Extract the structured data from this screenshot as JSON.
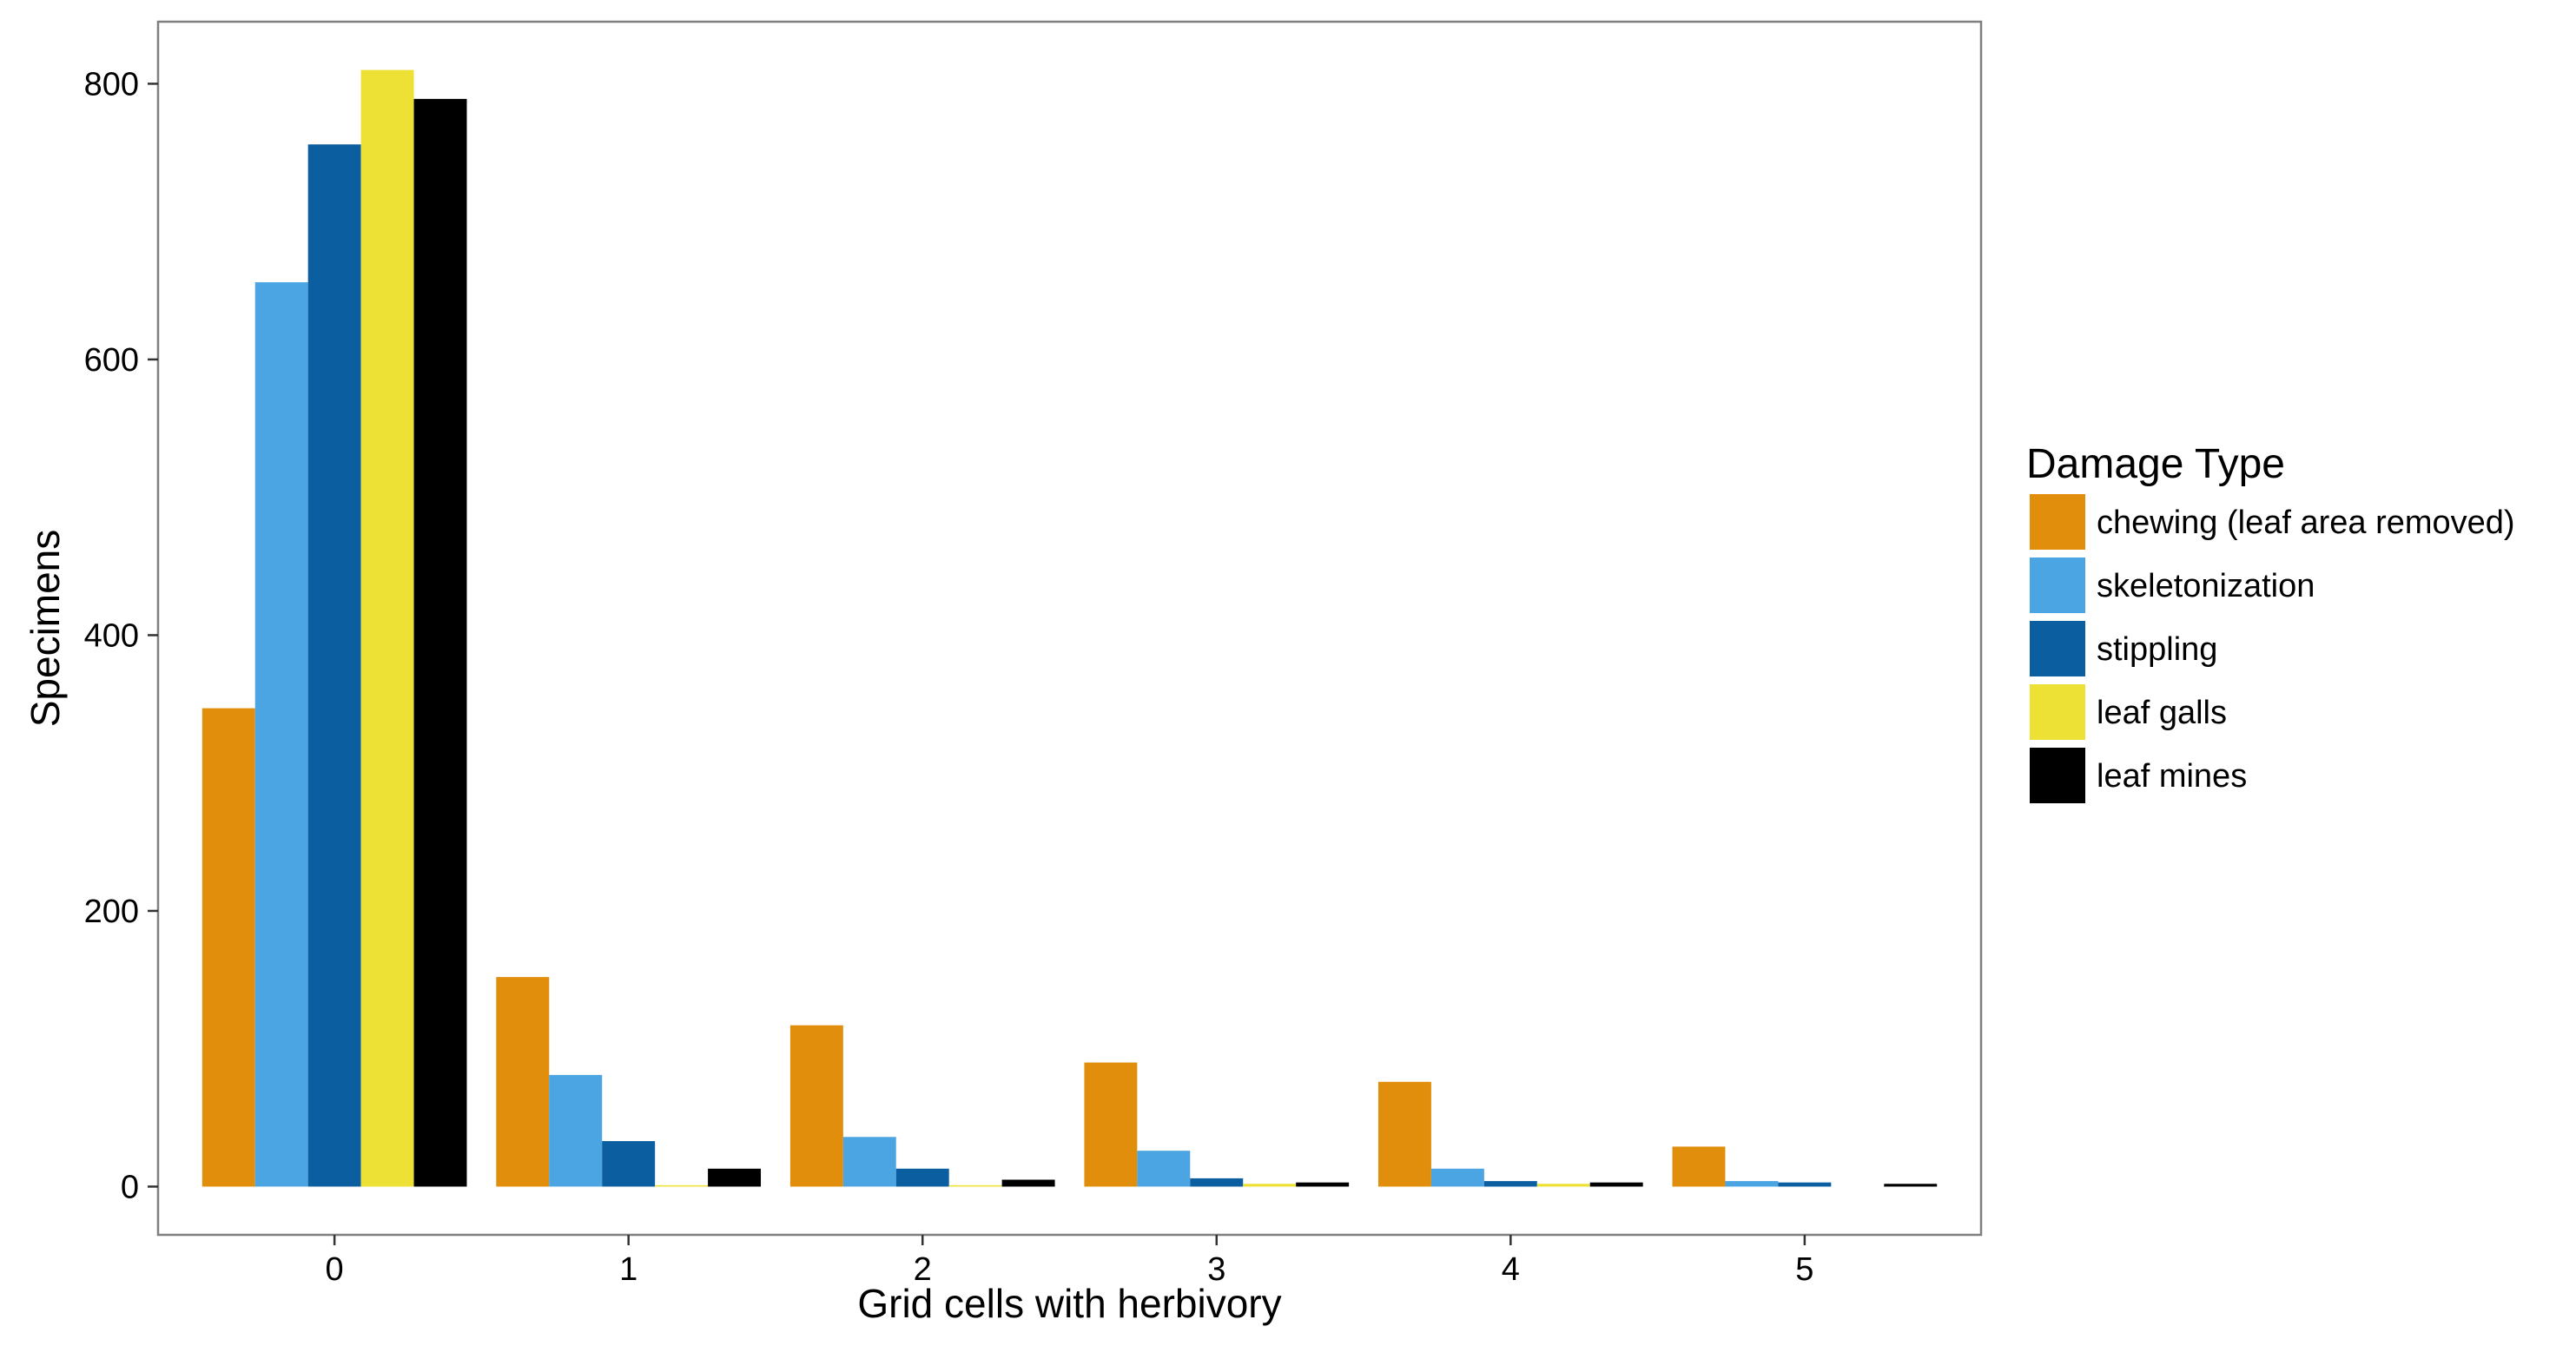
{
  "chart_data": {
    "type": "bar",
    "title": "",
    "xlabel": "Grid cells with herbivory",
    "ylabel": "Specimens",
    "categories": [
      "0",
      "1",
      "2",
      "3",
      "4",
      "5"
    ],
    "yticks": [
      0,
      200,
      400,
      600,
      800
    ],
    "ytick_labels": [
      "0",
      "200",
      "400",
      "600",
      "800"
    ],
    "ylim": [
      -35,
      845
    ],
    "grid": false,
    "legend": {
      "title": "Damage Type",
      "position": "right"
    },
    "series": [
      {
        "name": "chewing (leaf area removed)",
        "color": "#E08E0B",
        "values": [
          347,
          152,
          117,
          90,
          76,
          29
        ]
      },
      {
        "name": "skeletonization",
        "color": "#4BA5E2",
        "values": [
          656,
          81,
          36,
          26,
          13,
          4
        ]
      },
      {
        "name": "stippling",
        "color": "#0B5FA0",
        "values": [
          756,
          33,
          13,
          6,
          4,
          3
        ]
      },
      {
        "name": "leaf galls",
        "color": "#EEE136",
        "values": [
          810,
          1,
          1,
          2,
          2,
          0
        ]
      },
      {
        "name": "leaf mines",
        "color": "#000000",
        "values": [
          789,
          13,
          5,
          3,
          3,
          2
        ]
      }
    ]
  }
}
